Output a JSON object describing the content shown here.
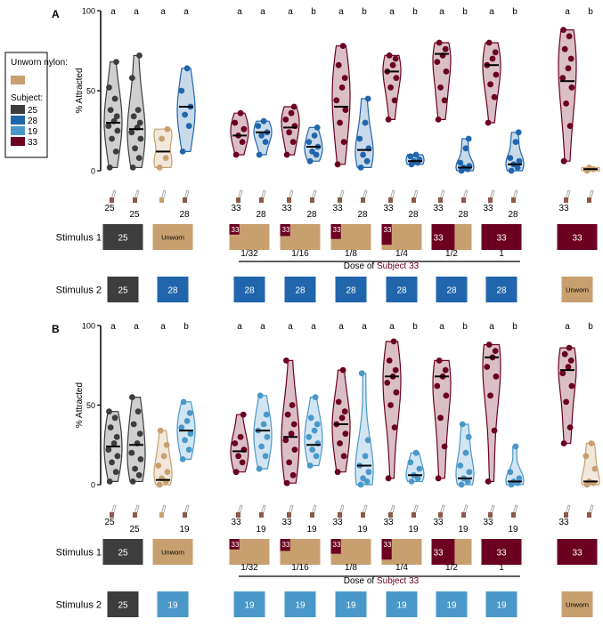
{
  "legend": {
    "unworn_title": "Unworn nylon:",
    "subject_title": "Subject:",
    "items": [
      {
        "label": "25",
        "color": "#3d3d3d"
      },
      {
        "label": "28",
        "color": "#2166ac"
      },
      {
        "label": "19",
        "color": "#4a98c9"
      },
      {
        "label": "33",
        "color": "#6b0020"
      }
    ],
    "unworn_color": "#c8a070"
  },
  "shared": {
    "dose_axis_label_prefix": "Dose of ",
    "dose_axis_label_subject": "Subject 33",
    "stimulus1_label": "Stimulus 1",
    "stimulus2_label": "Stimulus 2",
    "unworn_label": "Unworn",
    "dose_labels": [
      "1/32",
      "1/16",
      "1/8",
      "1/4",
      "1/2",
      "1"
    ],
    "dose_fractions": [
      0.03125,
      0.0625,
      0.125,
      0.25,
      0.5,
      1
    ]
  },
  "chart_data": [
    {
      "panel_label": "A",
      "type": "violin",
      "ylabel": "% Attracted",
      "ylim": [
        0,
        100
      ],
      "yticks": [
        "0",
        "50",
        "100"
      ],
      "groups": [
        {
          "letters": [
            "a",
            "a"
          ],
          "left_num": "25",
          "right_num": "25",
          "stim1": "25",
          "stim2": "25",
          "left": {
            "subject": "25",
            "median": 30,
            "points": [
              2,
              12,
              20,
              25,
              28,
              31,
              34,
              38,
              45,
              52,
              68
            ]
          },
          "right": {
            "subject": "25",
            "median": 26,
            "points": [
              2,
              8,
              14,
              20,
              24,
              27,
              30,
              34,
              38,
              58,
              72
            ]
          }
        },
        {
          "letters": [
            "a",
            "a"
          ],
          "left_num": "",
          "right_num": "28",
          "stim1": "unworn",
          "stim2": "28",
          "left": {
            "subject": "unworn",
            "median": 12,
            "points": [
              2,
              8,
              20,
              26
            ]
          },
          "right": {
            "subject": "28",
            "median": 40,
            "points": [
              12,
              28,
              35,
              40,
              50,
              64
            ]
          }
        },
        {
          "letters": [
            "a",
            "a"
          ],
          "left_num": "33",
          "right_num": "28",
          "stim1": "1/32",
          "stim2": "28",
          "left": {
            "subject": "33",
            "median": 22,
            "points": [
              10,
              18,
              22,
              26,
              30,
              36
            ]
          },
          "right": {
            "subject": "28",
            "median": 24,
            "points": [
              10,
              18,
              22,
              24,
              28,
              31
            ]
          }
        },
        {
          "letters": [
            "a",
            "b"
          ],
          "left_num": "33",
          "right_num": "28",
          "stim1": "1/16",
          "stim2": "28",
          "left": {
            "subject": "33",
            "median": 27,
            "points": [
              10,
              18,
              24,
              28,
              32,
              36,
              40
            ]
          },
          "right": {
            "subject": "28",
            "median": 15,
            "points": [
              6,
              10,
              12,
              15,
              18,
              22,
              27
            ]
          }
        },
        {
          "letters": [
            "a",
            "b"
          ],
          "left_num": "33",
          "right_num": "28",
          "stim1": "1/8",
          "stim2": "28",
          "left": {
            "subject": "33",
            "median": 40,
            "points": [
              4,
              18,
              30,
              38,
              44,
              52,
              58,
              66,
              78
            ]
          },
          "right": {
            "subject": "28",
            "median": 13,
            "points": [
              2,
              6,
              10,
              14,
              20,
              30,
              45
            ]
          }
        },
        {
          "letters": [
            "a",
            "b"
          ],
          "left_num": "33",
          "right_num": "28",
          "stim1": "1/4",
          "stim2": "28",
          "left": {
            "subject": "33",
            "median": 62,
            "points": [
              32,
              44,
              52,
              58,
              62,
              66,
              70,
              72
            ]
          },
          "right": {
            "subject": "28",
            "median": 6,
            "points": [
              4,
              5,
              6,
              7,
              9,
              10
            ]
          }
        },
        {
          "letters": [
            "a",
            "b"
          ],
          "left_num": "33",
          "right_num": "28",
          "stim1": "1/2",
          "stim2": "28",
          "left": {
            "subject": "33",
            "median": 73,
            "points": [
              32,
              44,
              52,
              62,
              68,
              72,
              76,
              80
            ]
          },
          "right": {
            "subject": "28",
            "median": 2,
            "points": [
              0,
              1,
              2,
              3,
              5,
              14,
              20
            ]
          }
        },
        {
          "letters": [
            "a",
            "b"
          ],
          "left_num": "33",
          "right_num": "28",
          "stim1": "1",
          "stim2": "28",
          "left": {
            "subject": "33",
            "median": 66,
            "points": [
              30,
              46,
              54,
              60,
              66,
              70,
              74,
              80
            ]
          },
          "right": {
            "subject": "28",
            "median": 4,
            "points": [
              0,
              2,
              4,
              6,
              8,
              18,
              24
            ]
          }
        },
        {
          "letters": [
            "a",
            "b"
          ],
          "left_num": "33",
          "right_num": "",
          "stim1": "33",
          "stim2": "unworn",
          "left": {
            "subject": "33",
            "median": 56,
            "points": [
              6,
              28,
              42,
              52,
              58,
              64,
              70,
              76,
              84,
              88
            ]
          },
          "right": {
            "subject": "unworn",
            "median": 1,
            "points": [
              0,
              1,
              2
            ]
          }
        }
      ]
    },
    {
      "panel_label": "B",
      "type": "violin",
      "ylabel": "% Attracted",
      "ylim": [
        0,
        100
      ],
      "yticks": [
        "0",
        "50",
        "100"
      ],
      "groups": [
        {
          "letters": [
            "a",
            "a"
          ],
          "left_num": "25",
          "right_num": "25",
          "stim1": "25",
          "stim2": "25",
          "left": {
            "subject": "25",
            "median": 24,
            "points": [
              2,
              8,
              14,
              18,
              22,
              26,
              30,
              36,
              42,
              46
            ]
          },
          "right": {
            "subject": "25",
            "median": 25,
            "points": [
              2,
              6,
              10,
              16,
              20,
              26,
              32,
              38,
              46,
              55
            ]
          }
        },
        {
          "letters": [
            "a",
            "b"
          ],
          "left_num": "",
          "right_num": "19",
          "stim1": "unworn",
          "stim2": "19",
          "left": {
            "subject": "unworn",
            "median": 3,
            "points": [
              0,
              2,
              4,
              8,
              12,
              18,
              25,
              34
            ]
          },
          "right": {
            "subject": "19",
            "median": 34,
            "points": [
              16,
              22,
              28,
              32,
              36,
              40,
              45,
              52
            ]
          }
        },
        {
          "letters": [
            "a",
            "a"
          ],
          "left_num": "33",
          "right_num": "19",
          "stim1": "1/32",
          "stim2": "19",
          "left": {
            "subject": "33",
            "median": 21,
            "points": [
              8,
              14,
              18,
              22,
              26,
              30,
              44
            ]
          },
          "right": {
            "subject": "19",
            "median": 34,
            "points": [
              10,
              18,
              24,
              30,
              34,
              38,
              44,
              56
            ]
          }
        },
        {
          "letters": [
            "a",
            "a"
          ],
          "left_num": "33",
          "right_num": "19",
          "stim1": "1/16",
          "stim2": "19",
          "left": {
            "subject": "33",
            "median": 30,
            "points": [
              1,
              6,
              14,
              22,
              28,
              32,
              38,
              44,
              50,
              78
            ]
          },
          "right": {
            "subject": "19",
            "median": 25,
            "points": [
              12,
              18,
              22,
              26,
              30,
              34,
              38,
              42,
              55
            ]
          }
        },
        {
          "letters": [
            "a",
            "a"
          ],
          "left_num": "33",
          "right_num": "19",
          "stim1": "1/8",
          "stim2": "19",
          "left": {
            "subject": "33",
            "median": 38,
            "points": [
              8,
              18,
              26,
              32,
              38,
              42,
              46,
              52,
              72
            ]
          },
          "right": {
            "subject": "19",
            "median": 12,
            "points": [
              0,
              2,
              4,
              8,
              12,
              18,
              28,
              70
            ]
          }
        },
        {
          "letters": [
            "a",
            "b"
          ],
          "left_num": "33",
          "right_num": "19",
          "stim1": "1/4",
          "stim2": "19",
          "left": {
            "subject": "33",
            "median": 68,
            "points": [
              4,
              36,
              50,
              58,
              64,
              68,
              72,
              78,
              90
            ]
          },
          "right": {
            "subject": "19",
            "median": 6,
            "points": [
              2,
              4,
              6,
              10,
              14,
              20
            ]
          }
        },
        {
          "letters": [
            "a",
            "b"
          ],
          "left_num": "33",
          "right_num": "19",
          "stim1": "1/2",
          "stim2": "19",
          "left": {
            "subject": "33",
            "median": 68,
            "points": [
              4,
              24,
              42,
              56,
              62,
              68,
              72,
              78
            ]
          },
          "right": {
            "subject": "19",
            "median": 4,
            "points": [
              0,
              2,
              4,
              8,
              12,
              20,
              30,
              38
            ]
          }
        },
        {
          "letters": [
            "a",
            "b"
          ],
          "left_num": "33",
          "right_num": "19",
          "stim1": "1",
          "stim2": "19",
          "left": {
            "subject": "33",
            "median": 80,
            "points": [
              2,
              34,
              56,
              68,
              74,
              80,
              84,
              88
            ]
          },
          "right": {
            "subject": "19",
            "median": 2,
            "points": [
              0,
              1,
              2,
              4,
              8,
              24
            ]
          }
        },
        {
          "letters": [
            "a",
            "b"
          ],
          "left_num": "33",
          "right_num": "",
          "stim1": "33",
          "stim2": "unworn",
          "left": {
            "subject": "33",
            "median": 72,
            "points": [
              26,
              36,
              52,
              62,
              70,
              74,
              78,
              82,
              86
            ]
          },
          "right": {
            "subject": "unworn",
            "median": 2,
            "points": [
              0,
              1,
              2,
              10,
              18,
              26
            ]
          }
        }
      ]
    }
  ]
}
